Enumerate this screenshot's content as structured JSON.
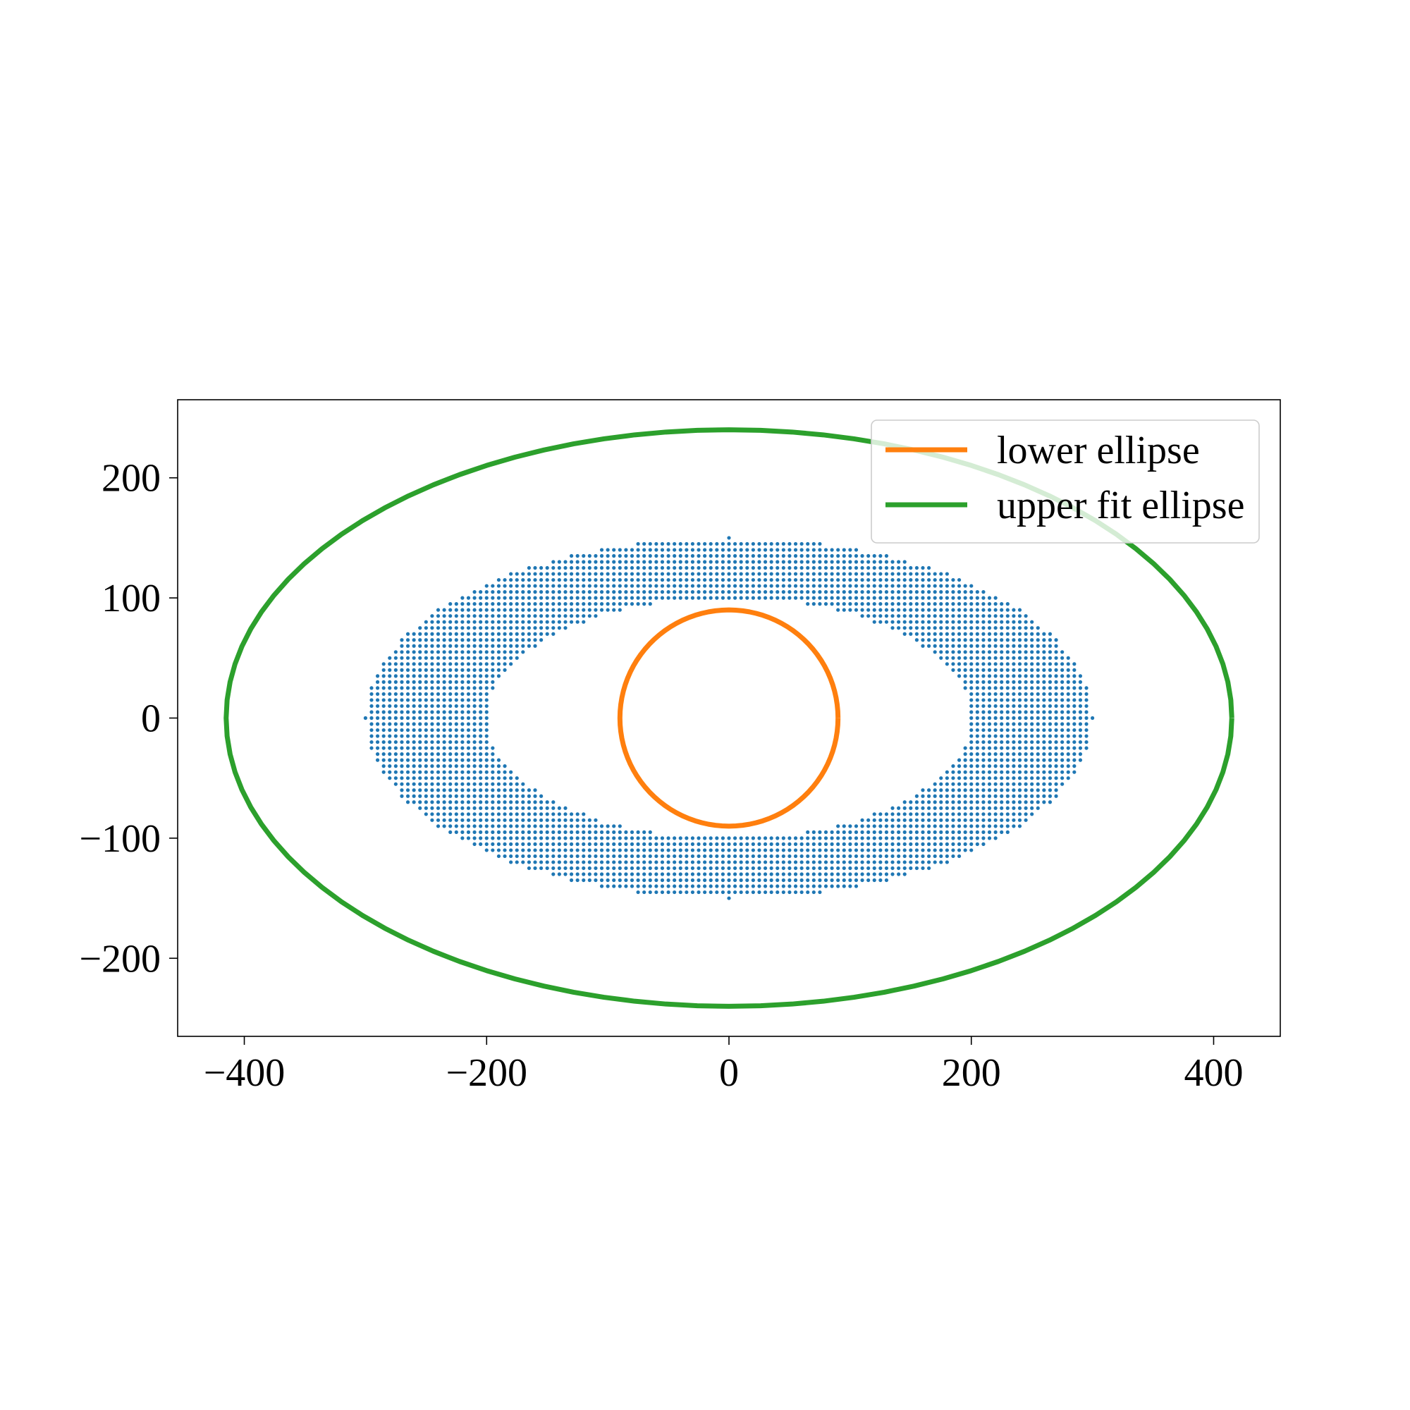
{
  "chart_data": {
    "type": "scatter",
    "title": "",
    "xlabel": "",
    "ylabel": "",
    "xlim": [
      -455,
      455
    ],
    "ylim": [
      -265,
      265
    ],
    "xticks": [
      -400,
      -200,
      0,
      200,
      400
    ],
    "yticks": [
      -200,
      -100,
      0,
      100,
      200
    ],
    "xtick_labels": [
      "−400",
      "−200",
      "0",
      "200",
      "400"
    ],
    "ytick_labels": [
      "−200",
      "−100",
      "0",
      "100",
      "200"
    ],
    "grid": false,
    "legend": {
      "placement": "upper right"
    },
    "series": [
      {
        "name": "",
        "kind": "points",
        "color": "#1f77b4",
        "description_region": {
          "outer_a": 300,
          "outer_b": 150,
          "inner_a": 200,
          "inner_b": 100,
          "spacing": 5
        }
      },
      {
        "name": "lower ellipse",
        "kind": "ellipse",
        "color": "#ff7f0e",
        "center": [
          0,
          0
        ],
        "a": 90,
        "b": 90
      },
      {
        "name": "upper fit ellipse",
        "kind": "ellipse",
        "color": "#2ca02c",
        "center": [
          0,
          0
        ],
        "a": 415,
        "b": 240
      }
    ]
  }
}
